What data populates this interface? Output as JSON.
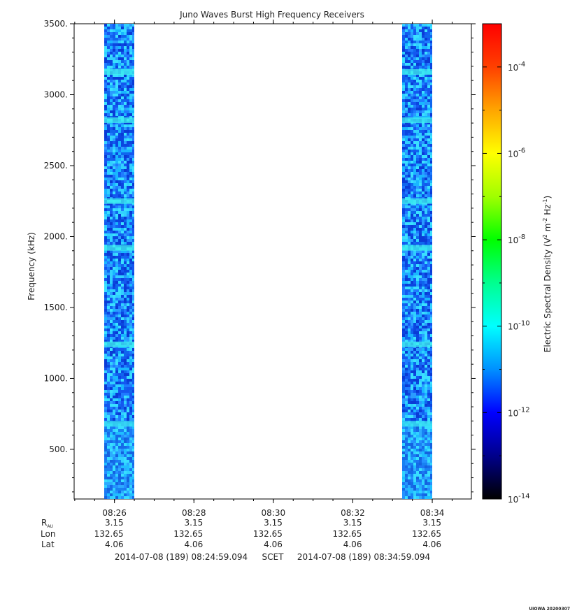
{
  "chart_data": {
    "type": "heatmap",
    "title": "Juno Waves Burst High Frequency Receivers",
    "ylabel": "Frequency (kHz)",
    "ylim": [
      150,
      3500
    ],
    "y_ticks": [
      500,
      1000,
      1500,
      2000,
      2500,
      3000,
      3500
    ],
    "y_tick_labels": [
      "500.",
      "1000.",
      "1500.",
      "2000.",
      "2500.",
      "3000.",
      "3500."
    ],
    "x_ticks": [
      "08:26",
      "08:28",
      "08:30",
      "08:32",
      "08:34"
    ],
    "x_start": "08:24:59.094",
    "x_end": "08:34:59.094",
    "data_blocks": [
      {
        "start": "08:25:45",
        "end": "08:26:30"
      },
      {
        "start": "08:33:15",
        "end": "08:34:00"
      }
    ],
    "bright_bands_khz": [
      3160,
      2820,
      2250,
      1920,
      1240,
      680
    ],
    "colorbar": {
      "label_prefix": "Electric Spectral Density (V",
      "label_sup1": "2",
      "label_mid": " m",
      "label_sup2": "-2",
      "label_mid2": " Hz",
      "label_sup3": "-1",
      "label_suffix": ")",
      "scale": "log",
      "range_exp": [
        -14,
        -3
      ],
      "tick_base": "10",
      "tick_exponents": [
        "-4",
        "-6",
        "-8",
        "-10",
        "-12",
        "-14"
      ],
      "colors": [
        "#000000",
        "#00008b",
        "#0000ff",
        "#0090ff",
        "#00ffff",
        "#00ff90",
        "#00ff00",
        "#a0ff00",
        "#ffff00",
        "#ffa500",
        "#ff4000",
        "#ff0000"
      ]
    },
    "ephemeris": {
      "row_labels": {
        "rau_main": "R",
        "rau_sub": "AU",
        "lon": "Lon",
        "lat": "Lat"
      },
      "rau": [
        "3.15",
        "3.15",
        "3.15",
        "3.15",
        "3.15"
      ],
      "lon": [
        "132.65",
        "132.65",
        "132.65",
        "132.65",
        "132.65"
      ],
      "lat": [
        "4.06",
        "4.06",
        "4.06",
        "4.06",
        "4.06"
      ]
    },
    "time_range_start": "2014-07-08 (189) 08:24:59.094",
    "time_system": "SCET",
    "time_range_end": "2014-07-08 (189) 08:34:59.094",
    "stamp": "UIOWA 20200307"
  }
}
